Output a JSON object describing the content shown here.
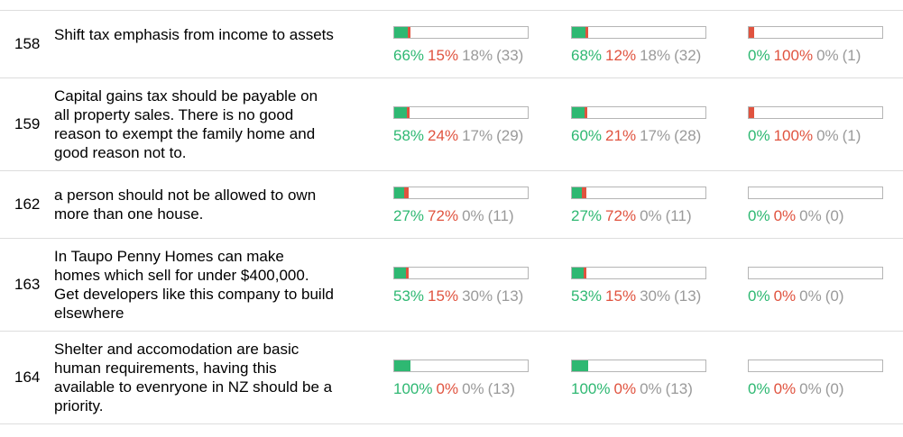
{
  "colors": {
    "agree": "#2eb872",
    "disagree": "#e0533f",
    "pass": "#9a9a9a",
    "bar_border": "#b5b5b5",
    "rule": "#dddddd"
  },
  "statements": [
    {
      "id": "158",
      "text": "Shift tax emphasis from income to assets",
      "groups": [
        {
          "agree": 66,
          "disagree": 15,
          "pass": 18,
          "agree_label": "66%",
          "disagree_label": "15%",
          "pass_label": "18%",
          "count_label": "(33)"
        },
        {
          "agree": 68,
          "disagree": 12,
          "pass": 18,
          "agree_label": "68%",
          "disagree_label": "12%",
          "pass_label": "18%",
          "count_label": "(32)"
        },
        {
          "agree": 0,
          "disagree": 100,
          "pass": 0,
          "agree_label": "0%",
          "disagree_label": "100%",
          "pass_label": "0%",
          "count_label": "(1)"
        }
      ]
    },
    {
      "id": "159",
      "text": "Capital gains tax should be payable on all property sales. There is no good reason to exempt the family home and good reason not to.",
      "groups": [
        {
          "agree": 58,
          "disagree": 24,
          "pass": 17,
          "agree_label": "58%",
          "disagree_label": "24%",
          "pass_label": "17%",
          "count_label": "(29)"
        },
        {
          "agree": 60,
          "disagree": 21,
          "pass": 17,
          "agree_label": "60%",
          "disagree_label": "21%",
          "pass_label": "17%",
          "count_label": "(28)"
        },
        {
          "agree": 0,
          "disagree": 100,
          "pass": 0,
          "agree_label": "0%",
          "disagree_label": "100%",
          "pass_label": "0%",
          "count_label": "(1)"
        }
      ]
    },
    {
      "id": "162",
      "text": "a person should not be allowed to own more than one house.",
      "groups": [
        {
          "agree": 27,
          "disagree": 72,
          "pass": 0,
          "agree_label": "27%",
          "disagree_label": "72%",
          "pass_label": "0%",
          "count_label": "(11)"
        },
        {
          "agree": 27,
          "disagree": 72,
          "pass": 0,
          "agree_label": "27%",
          "disagree_label": "72%",
          "pass_label": "0%",
          "count_label": "(11)"
        },
        {
          "agree": 0,
          "disagree": 0,
          "pass": 0,
          "agree_label": "0%",
          "disagree_label": "0%",
          "pass_label": "0%",
          "count_label": "(0)"
        }
      ]
    },
    {
      "id": "163",
      "text": "In Taupo Penny Homes can make homes which sell for under $400,000. Get developers like this company to build elsewhere",
      "groups": [
        {
          "agree": 53,
          "disagree": 15,
          "pass": 30,
          "agree_label": "53%",
          "disagree_label": "15%",
          "pass_label": "30%",
          "count_label": "(13)"
        },
        {
          "agree": 53,
          "disagree": 15,
          "pass": 30,
          "agree_label": "53%",
          "disagree_label": "15%",
          "pass_label": "30%",
          "count_label": "(13)"
        },
        {
          "agree": 0,
          "disagree": 0,
          "pass": 0,
          "agree_label": "0%",
          "disagree_label": "0%",
          "pass_label": "0%",
          "count_label": "(0)"
        }
      ]
    },
    {
      "id": "164",
      "text": "Shelter and accomodation are basic human requirements, having this available to evenryone in NZ should be a priority.",
      "groups": [
        {
          "agree": 100,
          "disagree": 0,
          "pass": 0,
          "agree_label": "100%",
          "disagree_label": "0%",
          "pass_label": "0%",
          "count_label": "(13)"
        },
        {
          "agree": 100,
          "disagree": 0,
          "pass": 0,
          "agree_label": "100%",
          "disagree_label": "0%",
          "pass_label": "0%",
          "count_label": "(13)"
        },
        {
          "agree": 0,
          "disagree": 0,
          "pass": 0,
          "agree_label": "0%",
          "disagree_label": "0%",
          "pass_label": "0%",
          "count_label": "(0)"
        }
      ]
    }
  ]
}
